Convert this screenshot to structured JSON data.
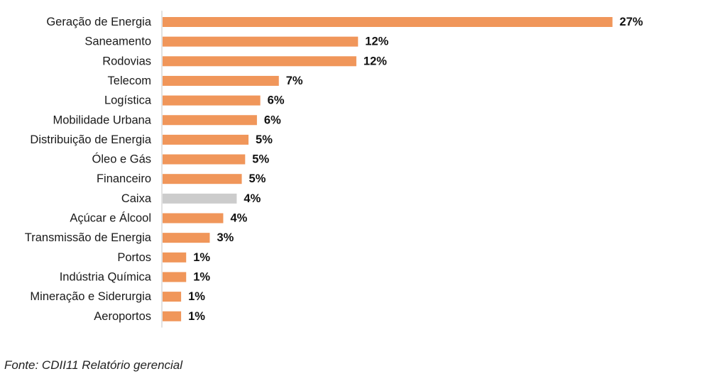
{
  "chart_data": {
    "type": "bar",
    "orientation": "horizontal",
    "categories": [
      "Geração de Energia",
      "Saneamento",
      "Rodovias",
      "Telecom",
      "Logística",
      "Mobilidade Urbana",
      "Distribuição de Energia",
      "Óleo e Gás",
      "Financeiro",
      "Caixa",
      "Açúcar e Álcool",
      "Transmissão de Energia",
      "Portos",
      "Indústria Química",
      "Mineração e Siderurgia",
      "Aeroportos"
    ],
    "values": [
      27,
      12,
      12,
      7,
      6,
      6,
      5,
      5,
      5,
      4,
      4,
      3,
      1,
      1,
      1,
      1
    ],
    "value_labels": [
      "27%",
      "12%",
      "12%",
      "7%",
      "6%",
      "6%",
      "5%",
      "5%",
      "5%",
      "4%",
      "4%",
      "3%",
      "1%",
      "1%",
      "1%",
      "1%"
    ],
    "bar_values_exact": [
      26.7,
      11.6,
      11.5,
      6.9,
      5.8,
      5.6,
      5.1,
      4.9,
      4.7,
      4.4,
      3.6,
      2.8,
      1.4,
      1.4,
      1.1,
      1.1
    ],
    "colors": {
      "default": "#f0965a",
      "highlight": "#cccccc",
      "axis": "#d9d9d9"
    },
    "highlight_category": "Caixa",
    "xlim": [
      0,
      30
    ],
    "grid": false,
    "legend": "none",
    "title": "",
    "xlabel": "",
    "ylabel": ""
  },
  "source": {
    "text": "Fonte: CDII11 Relatório gerencial"
  }
}
